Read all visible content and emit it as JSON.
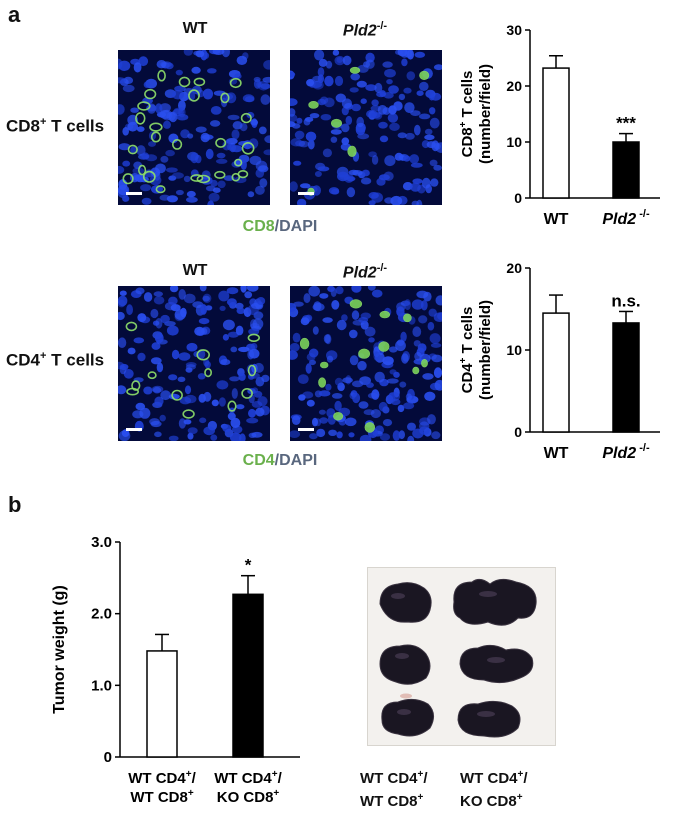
{
  "panel_a": {
    "letter": "a",
    "col_wt": "WT",
    "col_ko": "Pld2",
    "col_ko_sup": "-/-",
    "row1_label_pre": "CD8",
    "row1_label_sup": "+",
    "row1_label_post": " T cells",
    "row2_label_pre": "CD4",
    "row2_label_sup": "+",
    "row2_label_post": " T cells",
    "stain1_marker": "CD8",
    "stain2_marker": "CD4",
    "stain_sep": "/DAPI"
  },
  "panel_b": {
    "letter": "b",
    "photo_label_1_a": "WT CD4",
    "photo_label_1_a_sup": "+",
    "photo_label_1_a_end": "/",
    "photo_label_1_b": "WT CD8",
    "photo_label_1_b_sup": "+",
    "photo_label_2_a": "WT CD4",
    "photo_label_2_a_sup": "+",
    "photo_label_2_a_end": "/",
    "photo_label_2_b": "KO CD8",
    "photo_label_2_b_sup": "+"
  },
  "colors": {
    "stain_green": "#6ab04c",
    "dapi_blue": "#1f3fd6",
    "bar_black": "#000000"
  },
  "chart_data": [
    {
      "type": "bar",
      "ylabel_line1": "CD8",
      "ylabel_line1_sup": "+",
      "ylabel_line1_post": " T cells",
      "ylabel_line2": "(number/field)",
      "categories": [
        "WT",
        "Pld2 -/-"
      ],
      "cat_labels": [
        {
          "main": "WT",
          "sup": ""
        },
        {
          "main": "Pld2",
          "sup": " -/-"
        }
      ],
      "values": [
        23.2,
        10.0
      ],
      "errors": [
        2.2,
        1.5
      ],
      "fills": [
        "#ffffff",
        "#000000"
      ],
      "annotations": [
        "",
        "***"
      ],
      "ylim": [
        0,
        30
      ],
      "yticks": [
        "0",
        "10",
        "20",
        "30"
      ]
    },
    {
      "type": "bar",
      "ylabel_line1": "CD4",
      "ylabel_line1_sup": "+",
      "ylabel_line1_post": " T cells",
      "ylabel_line2": "(number/field)",
      "categories": [
        "WT",
        "Pld2 -/-"
      ],
      "cat_labels": [
        {
          "main": "WT",
          "sup": ""
        },
        {
          "main": "Pld2",
          "sup": " -/-"
        }
      ],
      "values": [
        14.5,
        13.3
      ],
      "errors": [
        2.2,
        1.4
      ],
      "fills": [
        "#ffffff",
        "#000000"
      ],
      "annotations": [
        "",
        "n.s."
      ],
      "ylim": [
        0,
        20
      ],
      "yticks": [
        "0",
        "10",
        "20"
      ]
    },
    {
      "type": "bar",
      "ylabel_line1": "Tumor weight (g)",
      "categories": [
        "WT CD4+/WT CD8+",
        "WT CD4+/KO CD8+"
      ],
      "cat_labels": [
        {
          "l1": "WT CD4",
          "l1sup": "+",
          "l1end": "/",
          "l2": "WT CD8",
          "l2sup": "+"
        },
        {
          "l1": "WT CD4",
          "l1sup": "+",
          "l1end": "/",
          "l2": "KO CD8",
          "l2sup": "+"
        }
      ],
      "values": [
        1.48,
        2.27
      ],
      "errors": [
        0.23,
        0.26
      ],
      "fills": [
        "#ffffff",
        "#000000"
      ],
      "annotations": [
        "",
        "*"
      ],
      "ylim": [
        0,
        3.0
      ],
      "yticks": [
        "0",
        "1.0",
        "2.0",
        "3.0"
      ]
    }
  ]
}
